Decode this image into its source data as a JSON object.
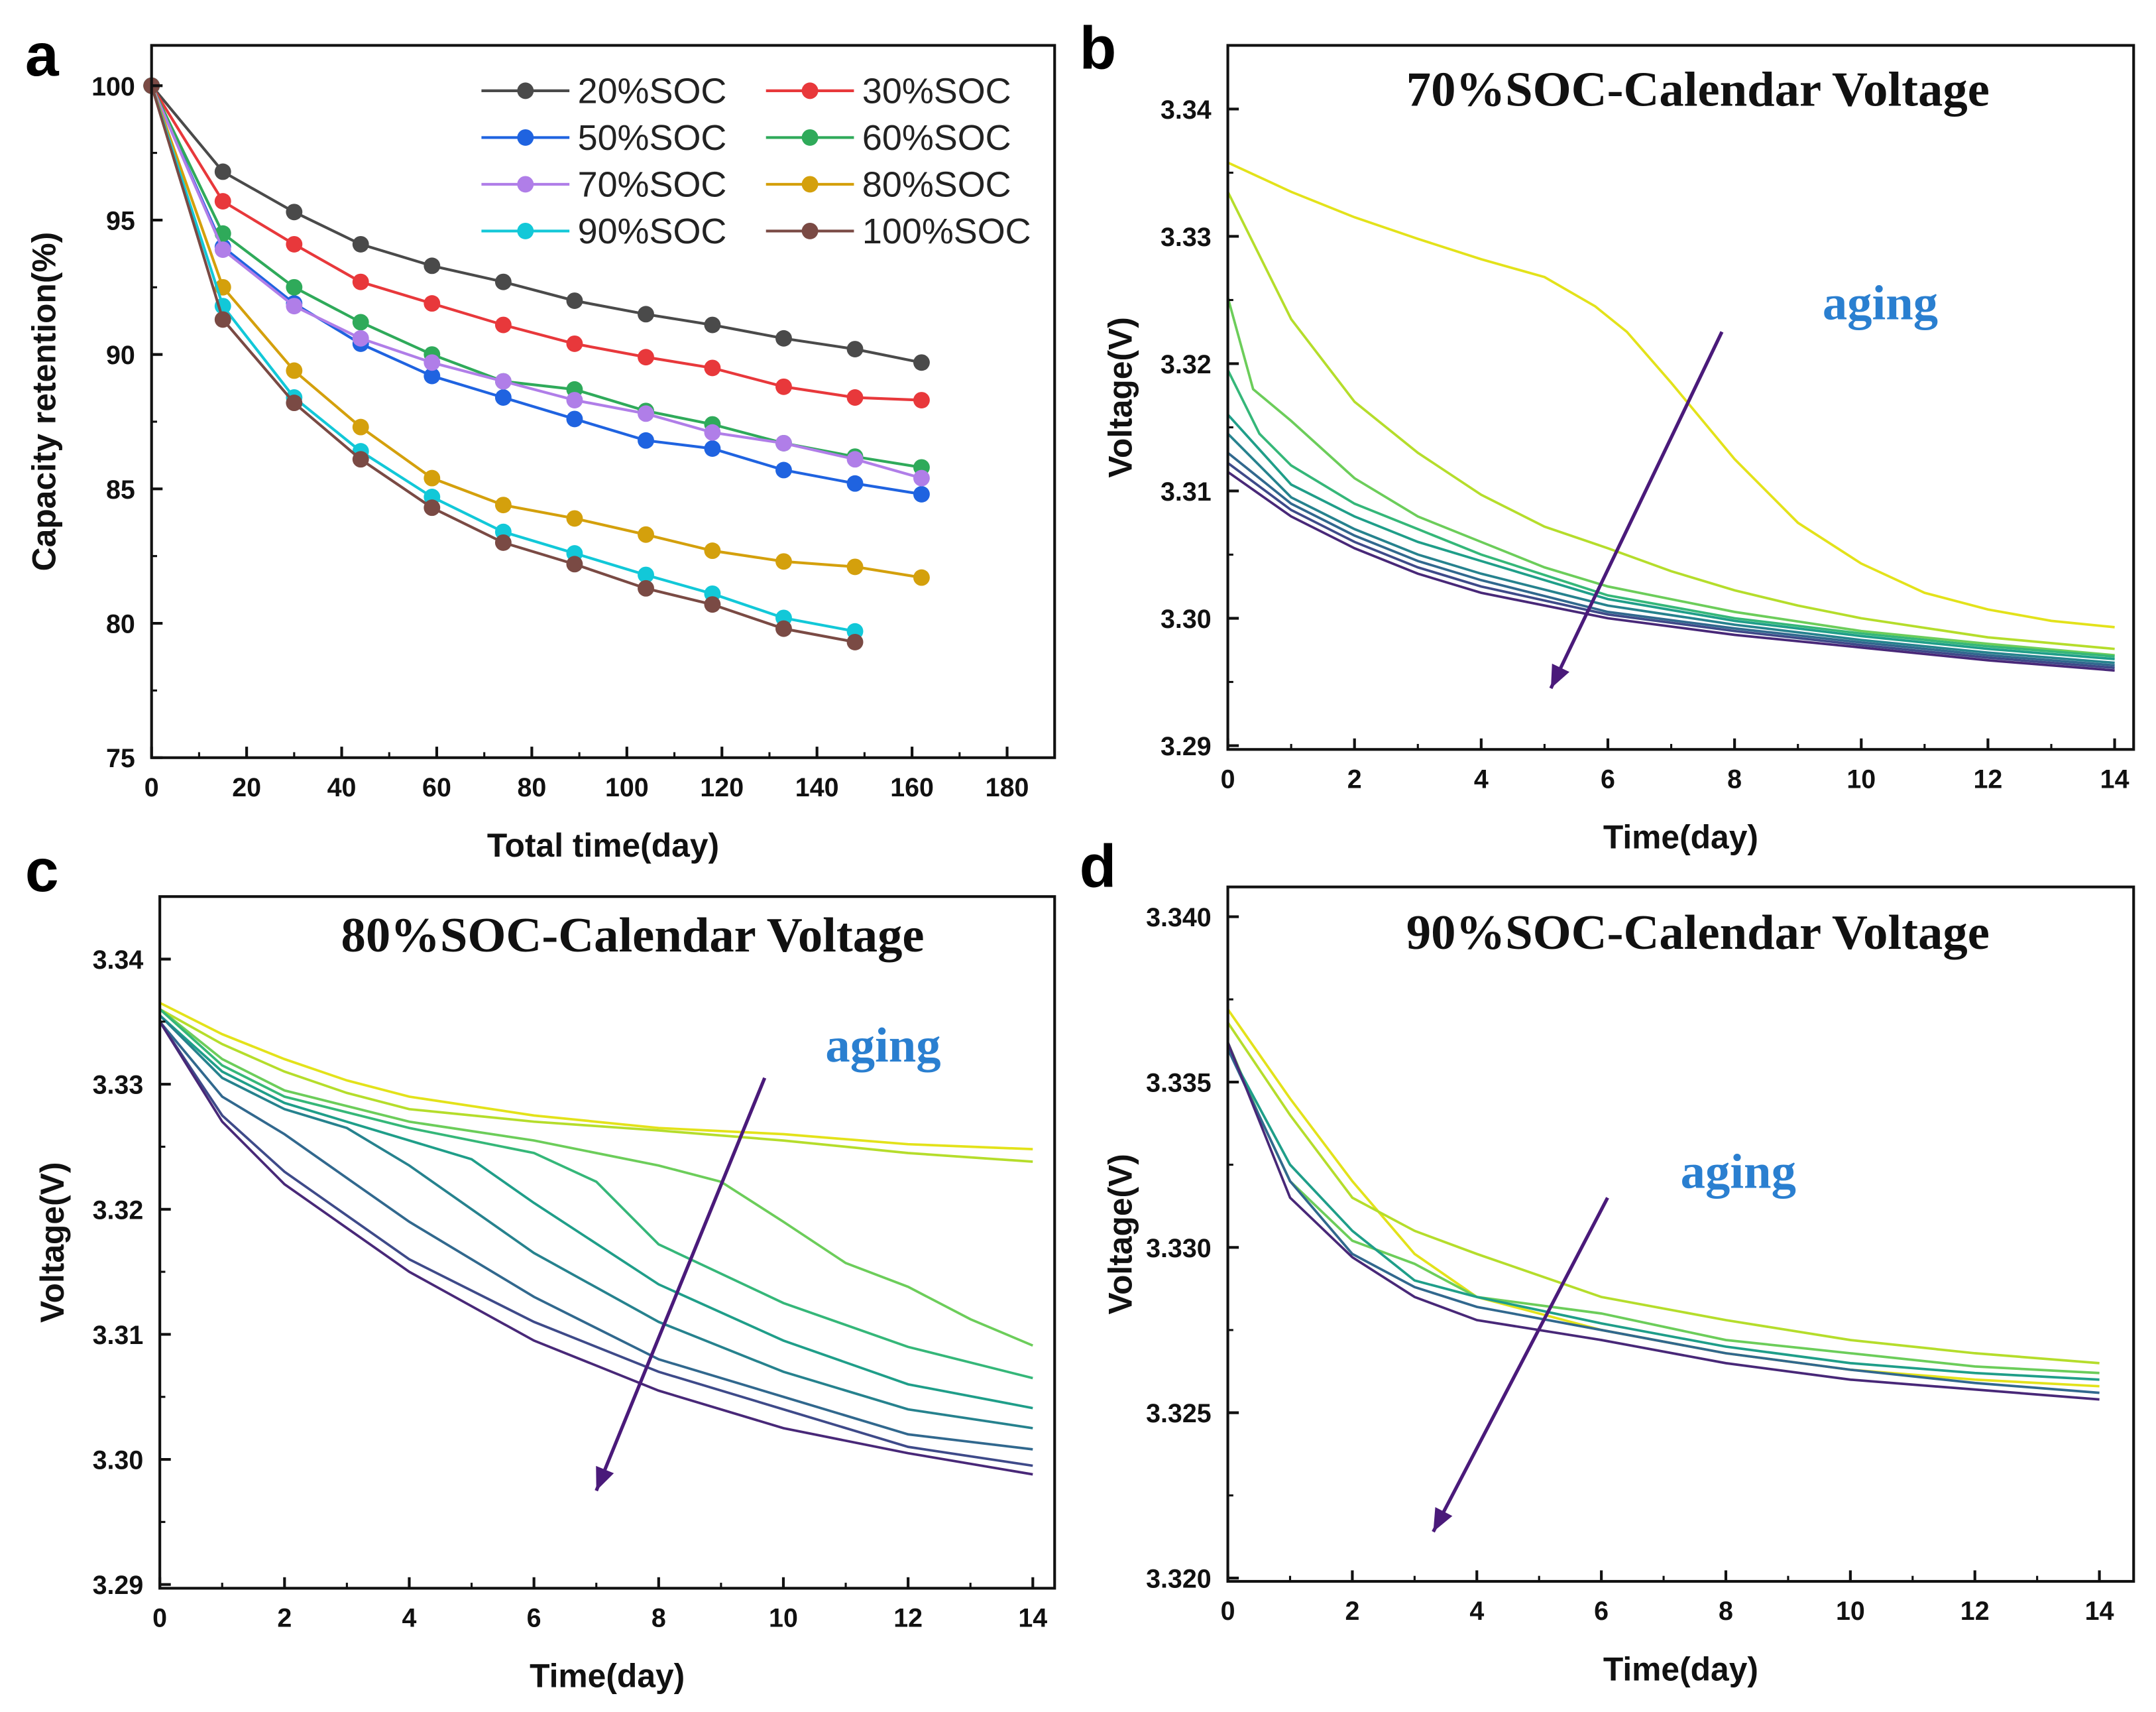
{
  "chart_data": [
    {
      "panel": "a",
      "type": "line",
      "title": "",
      "xlabel": "Total time(day)",
      "ylabel": "Capacity retention(%)",
      "xlim": [
        0,
        190
      ],
      "ylim": [
        75,
        101.5
      ],
      "xticks": [
        0,
        20,
        40,
        60,
        80,
        100,
        120,
        140,
        160,
        180
      ],
      "yticks": [
        75,
        80,
        85,
        90,
        95,
        100
      ],
      "grid": false,
      "legend": "top-right",
      "markers": true,
      "series": [
        {
          "name": "20%SOC",
          "color": "#4a4a4a",
          "x": [
            0,
            15,
            30,
            44,
            59,
            74,
            89,
            104,
            118,
            133,
            148,
            162
          ],
          "values": [
            100,
            96.8,
            95.3,
            94.1,
            93.3,
            92.7,
            92.0,
            91.5,
            91.1,
            90.6,
            90.2,
            89.7
          ]
        },
        {
          "name": "30%SOC",
          "color": "#e8383b",
          "x": [
            0,
            15,
            30,
            44,
            59,
            74,
            89,
            104,
            118,
            133,
            148,
            162
          ],
          "values": [
            100,
            95.7,
            94.1,
            92.7,
            91.9,
            91.1,
            90.4,
            89.9,
            89.5,
            88.8,
            88.4,
            88.3
          ]
        },
        {
          "name": "50%SOC",
          "color": "#1f63e0",
          "x": [
            0,
            15,
            30,
            44,
            59,
            74,
            89,
            104,
            118,
            133,
            148,
            162
          ],
          "values": [
            100,
            94.0,
            91.9,
            90.4,
            89.2,
            88.4,
            87.6,
            86.8,
            86.5,
            85.7,
            85.2,
            84.8
          ]
        },
        {
          "name": "60%SOC",
          "color": "#2faa5a",
          "x": [
            0,
            15,
            30,
            44,
            59,
            74,
            89,
            104,
            118,
            133,
            148,
            162
          ],
          "values": [
            100,
            94.5,
            92.5,
            91.2,
            90.0,
            89.0,
            88.7,
            87.9,
            87.4,
            86.7,
            86.2,
            85.8
          ]
        },
        {
          "name": "70%SOC",
          "color": "#b07ee8",
          "x": [
            0,
            15,
            30,
            44,
            59,
            74,
            89,
            104,
            118,
            133,
            148,
            162
          ],
          "values": [
            100,
            93.9,
            91.8,
            90.6,
            89.7,
            89.0,
            88.3,
            87.8,
            87.1,
            86.7,
            86.1,
            85.4
          ]
        },
        {
          "name": "80%SOC",
          "color": "#d4a00c",
          "x": [
            0,
            15,
            30,
            44,
            59,
            74,
            89,
            104,
            118,
            133,
            148,
            162
          ],
          "values": [
            100,
            92.5,
            89.4,
            87.3,
            85.4,
            84.4,
            83.9,
            83.3,
            82.7,
            82.3,
            82.1,
            81.7
          ]
        },
        {
          "name": "90%SOC",
          "color": "#12c8d8",
          "x": [
            0,
            15,
            30,
            44,
            59,
            74,
            89,
            104,
            118,
            133,
            148
          ],
          "values": [
            100,
            91.8,
            88.4,
            86.4,
            84.7,
            83.4,
            82.6,
            81.8,
            81.1,
            80.2,
            79.7
          ]
        },
        {
          "name": "100%SOC",
          "color": "#7a4a44",
          "x": [
            0,
            15,
            30,
            44,
            59,
            74,
            89,
            104,
            118,
            133,
            148
          ],
          "values": [
            100,
            91.3,
            88.2,
            86.1,
            84.3,
            83.0,
            82.2,
            81.3,
            80.7,
            79.8,
            79.3
          ]
        }
      ]
    },
    {
      "panel": "b",
      "type": "line",
      "title": "70%SOC-Calendar Voltage",
      "xlabel": "Time(day)",
      "ylabel": "Voltage(V)",
      "xlim": [
        0,
        14.3
      ],
      "ylim": [
        3.2897,
        3.345
      ],
      "xticks": [
        0,
        2,
        4,
        6,
        8,
        10,
        12,
        14
      ],
      "yticks": [
        3.29,
        3.3,
        3.31,
        3.32,
        3.33,
        3.34
      ],
      "ytick_labels": [
        "3.29",
        "3.30",
        "3.31",
        "3.32",
        "3.33",
        "3.34"
      ],
      "grid": false,
      "colormap": "viridis",
      "annotation": {
        "text": "aging",
        "arrow_from": [
          7.8,
          3.3225
        ],
        "arrow_to": [
          5.1,
          3.2945
        ],
        "text_at": [
          10.3,
          3.3235
        ],
        "arrow_color": "#4a1a7a"
      },
      "series": [
        {
          "color": "#e3e21a",
          "x": [
            0,
            1,
            2,
            3,
            4,
            5,
            5.8,
            6.3,
            7,
            8,
            9,
            10,
            11,
            12,
            13,
            14
          ],
          "values": [
            3.3358,
            3.3335,
            3.3315,
            3.3298,
            3.3282,
            3.3268,
            3.3245,
            3.3225,
            3.3185,
            3.3125,
            3.3075,
            3.3043,
            3.302,
            3.3007,
            3.2998,
            3.2993
          ]
        },
        {
          "color": "#b5dd2b",
          "x": [
            0,
            1,
            2,
            3,
            4,
            5,
            6,
            7,
            8,
            9,
            10,
            12,
            14
          ],
          "values": [
            3.3335,
            3.3235,
            3.317,
            3.313,
            3.3097,
            3.3072,
            3.3055,
            3.3037,
            3.3022,
            3.301,
            3.3,
            3.2985,
            3.2976
          ]
        },
        {
          "color": "#6ccd5a",
          "x": [
            0,
            0.4,
            1,
            2,
            3,
            4,
            5,
            6,
            8,
            10,
            12,
            14
          ],
          "values": [
            3.3252,
            3.318,
            3.3155,
            3.311,
            3.308,
            3.306,
            3.304,
            3.3025,
            3.3005,
            3.299,
            3.298,
            3.2971
          ]
        },
        {
          "color": "#35b779",
          "x": [
            0,
            0.5,
            1,
            2,
            3,
            4,
            6,
            8,
            10,
            12,
            14
          ],
          "values": [
            3.3195,
            3.3145,
            3.312,
            3.309,
            3.307,
            3.305,
            3.3018,
            3.3,
            3.2988,
            3.2978,
            3.297
          ]
        },
        {
          "color": "#1f9e89",
          "x": [
            0,
            1,
            2,
            3,
            4,
            6,
            8,
            10,
            12,
            14
          ],
          "values": [
            3.316,
            3.3105,
            3.308,
            3.306,
            3.3045,
            3.3015,
            3.2998,
            3.2986,
            3.2976,
            3.2968
          ]
        },
        {
          "color": "#26828e",
          "x": [
            0,
            1,
            2,
            3,
            4,
            6,
            8,
            10,
            12,
            14
          ],
          "values": [
            3.3145,
            3.3095,
            3.307,
            3.305,
            3.3035,
            3.301,
            3.2995,
            3.2983,
            3.2973,
            3.2965
          ]
        },
        {
          "color": "#31688e",
          "x": [
            0,
            1,
            2,
            3,
            4,
            6,
            8,
            10,
            12,
            14
          ],
          "values": [
            3.313,
            3.309,
            3.3065,
            3.3045,
            3.303,
            3.3005,
            3.2992,
            3.2981,
            3.2971,
            3.2963
          ]
        },
        {
          "color": "#3e4a89",
          "x": [
            0,
            1,
            2,
            3,
            4,
            6,
            8,
            10,
            12,
            14
          ],
          "values": [
            3.3122,
            3.3085,
            3.306,
            3.304,
            3.3025,
            3.3003,
            3.299,
            3.2979,
            3.2969,
            3.2961
          ]
        },
        {
          "color": "#482878",
          "x": [
            0,
            1,
            2,
            3,
            4,
            6,
            8,
            10,
            12,
            14
          ],
          "values": [
            3.3115,
            3.308,
            3.3055,
            3.3035,
            3.302,
            3.3,
            3.2987,
            3.2977,
            3.2967,
            3.2959
          ]
        }
      ]
    },
    {
      "panel": "c",
      "type": "line",
      "title": "80%SOC-Calendar Voltage",
      "xlabel": "Time(day)",
      "ylabel": "Voltage(V)",
      "xlim": [
        0,
        14.35
      ],
      "ylim": [
        3.2897,
        3.345
      ],
      "xticks": [
        0,
        2,
        4,
        6,
        8,
        10,
        12,
        14
      ],
      "yticks": [
        3.29,
        3.3,
        3.31,
        3.32,
        3.33,
        3.34
      ],
      "ytick_labels": [
        "3.29",
        "3.30",
        "3.31",
        "3.32",
        "3.33",
        "3.34"
      ],
      "grid": false,
      "colormap": "viridis",
      "annotation": {
        "text": "aging",
        "arrow_from": [
          9.7,
          3.3305
        ],
        "arrow_to": [
          7.0,
          3.2975
        ],
        "text_at": [
          11.6,
          3.3318
        ],
        "arrow_color": "#4a1a7a"
      },
      "series": [
        {
          "color": "#e3e21a",
          "x": [
            0,
            1,
            2,
            3,
            4,
            6,
            8,
            10,
            12,
            14
          ],
          "values": [
            3.3365,
            3.334,
            3.332,
            3.3303,
            3.329,
            3.3275,
            3.3265,
            3.326,
            3.3252,
            3.3248
          ]
        },
        {
          "color": "#b5dd2b",
          "x": [
            0,
            1,
            2,
            3,
            4,
            6,
            8,
            10,
            12,
            14
          ],
          "values": [
            3.336,
            3.3332,
            3.331,
            3.3293,
            3.328,
            3.327,
            3.3263,
            3.3255,
            3.3245,
            3.3238
          ]
        },
        {
          "color": "#6ccd5a",
          "x": [
            0,
            1,
            2,
            4,
            6,
            8,
            9,
            10,
            11,
            12,
            13,
            14
          ],
          "values": [
            3.336,
            3.332,
            3.3295,
            3.327,
            3.3255,
            3.3235,
            3.3222,
            3.319,
            3.3157,
            3.3138,
            3.3112,
            3.3091
          ]
        },
        {
          "color": "#35b779",
          "x": [
            0,
            1,
            2,
            4,
            6,
            7,
            8,
            10,
            12,
            14
          ],
          "values": [
            3.336,
            3.3315,
            3.329,
            3.3265,
            3.3245,
            3.3222,
            3.3172,
            3.3125,
            3.309,
            3.3065
          ]
        },
        {
          "color": "#1f9e89",
          "x": [
            0,
            1,
            2,
            4,
            5,
            6,
            8,
            10,
            12,
            14
          ],
          "values": [
            3.3355,
            3.331,
            3.3285,
            3.3255,
            3.324,
            3.3205,
            3.314,
            3.3095,
            3.306,
            3.3041
          ]
        },
        {
          "color": "#26828e",
          "x": [
            0,
            1,
            2,
            3,
            4,
            6,
            8,
            10,
            12,
            14
          ],
          "values": [
            3.3355,
            3.3305,
            3.328,
            3.3265,
            3.3235,
            3.3165,
            3.311,
            3.307,
            3.304,
            3.3025
          ]
        },
        {
          "color": "#31688e",
          "x": [
            0,
            1,
            2,
            3,
            4,
            6,
            8,
            10,
            12,
            14
          ],
          "values": [
            3.335,
            3.329,
            3.326,
            3.3225,
            3.319,
            3.313,
            3.308,
            3.305,
            3.302,
            3.3008
          ]
        },
        {
          "color": "#3e4a89",
          "x": [
            0,
            1,
            2,
            4,
            6,
            8,
            10,
            12,
            14
          ],
          "values": [
            3.335,
            3.3275,
            3.323,
            3.316,
            3.311,
            3.307,
            3.304,
            3.301,
            3.2995
          ]
        },
        {
          "color": "#482878",
          "x": [
            0,
            1,
            2,
            4,
            6,
            8,
            10,
            12,
            14
          ],
          "values": [
            3.335,
            3.327,
            3.322,
            3.315,
            3.3095,
            3.3055,
            3.3025,
            3.3005,
            3.2988
          ]
        }
      ]
    },
    {
      "panel": "d",
      "type": "line",
      "title": "90%SOC-Calendar Voltage",
      "xlabel": "Time(day)",
      "ylabel": "Voltage(V)",
      "xlim": [
        0,
        14.55
      ],
      "ylim": [
        3.3199,
        3.3409
      ],
      "xticks": [
        0,
        2,
        4,
        6,
        8,
        10,
        12,
        14
      ],
      "yticks": [
        3.32,
        3.325,
        3.33,
        3.335,
        3.34
      ],
      "ytick_labels": [
        "3.320",
        "3.325",
        "3.330",
        "3.335",
        "3.340"
      ],
      "grid": false,
      "colormap": "viridis",
      "annotation": {
        "text": "aging",
        "arrow_from": [
          6.1,
          3.3315
        ],
        "arrow_to": [
          3.3,
          3.3214
        ],
        "text_at": [
          8.2,
          3.3318
        ],
        "arrow_color": "#4a1a7a"
      },
      "series": [
        {
          "color": "#e3e21a",
          "x": [
            0,
            1,
            2,
            3,
            4,
            6,
            8,
            10,
            12,
            14
          ],
          "values": [
            3.3372,
            3.3345,
            3.332,
            3.3298,
            3.3285,
            3.3275,
            3.3268,
            3.3263,
            3.326,
            3.3258
          ]
        },
        {
          "color": "#b5dd2b",
          "x": [
            0,
            1,
            2,
            3,
            4,
            6,
            8,
            10,
            12,
            14
          ],
          "values": [
            3.3368,
            3.334,
            3.3315,
            3.3305,
            3.3298,
            3.3285,
            3.3278,
            3.3272,
            3.3268,
            3.3265
          ]
        },
        {
          "color": "#6ccd5a",
          "x": [
            0,
            0.5,
            1,
            2,
            3,
            4,
            6,
            8,
            10,
            12,
            14
          ],
          "values": [
            3.3362,
            3.334,
            3.332,
            3.3302,
            3.3295,
            3.3285,
            3.328,
            3.3272,
            3.3268,
            3.3264,
            3.3262
          ]
        },
        {
          "color": "#1f9e89",
          "x": [
            0,
            1,
            2,
            3,
            4,
            6,
            8,
            10,
            12,
            14
          ],
          "values": [
            3.336,
            3.3325,
            3.3305,
            3.329,
            3.3285,
            3.3277,
            3.327,
            3.3265,
            3.3262,
            3.326
          ]
        },
        {
          "color": "#31688e",
          "x": [
            0,
            1,
            2,
            3,
            4,
            6,
            8,
            10,
            12,
            14
          ],
          "values": [
            3.336,
            3.332,
            3.3298,
            3.3288,
            3.3282,
            3.3275,
            3.3268,
            3.3263,
            3.3259,
            3.3256
          ]
        },
        {
          "color": "#482878",
          "x": [
            0,
            1,
            2,
            3,
            4,
            6,
            8,
            10,
            12,
            14
          ],
          "values": [
            3.3362,
            3.3315,
            3.3297,
            3.3285,
            3.3278,
            3.3272,
            3.3265,
            3.326,
            3.3257,
            3.3254
          ]
        }
      ]
    }
  ]
}
